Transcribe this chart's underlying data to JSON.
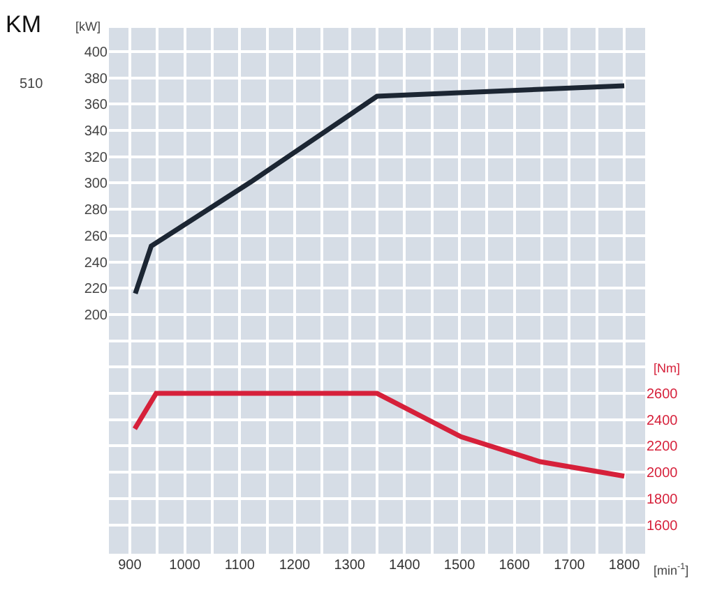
{
  "chart_data": {
    "type": "line",
    "annotations": [
      "KM",
      "510"
    ],
    "xlabel": "[min$^{-1}$]",
    "ylabel": "[kW]",
    "y2label": "[Nm]",
    "series": [
      {
        "color": "#1c2633",
        "x": [
          910,
          939,
          1121,
          1350,
          1800
        ],
        "values": [
          216,
          252,
          301,
          366,
          374
        ]
      },
      {
        "color": "#d6203a",
        "axis": "y2",
        "x": [
          909,
          948,
          1350,
          1503,
          1647,
          1800
        ],
        "values": [
          2330,
          2600,
          2600,
          2270,
          2080,
          1970
        ]
      }
    ],
    "xlim": [
      862,
      1838
    ],
    "xticks": [
      900,
      {
        "value": 950,
        "label": null
      },
      1000,
      {
        "value": 1050,
        "label": null
      },
      1100,
      {
        "value": 1150,
        "label": null
      },
      1200,
      {
        "value": 1250,
        "label": null
      },
      1300,
      {
        "value": 1350,
        "label": null
      },
      1400,
      {
        "value": 1450,
        "label": null
      },
      1500,
      {
        "value": 1550,
        "label": null
      },
      1600,
      {
        "value": 1650,
        "label": null
      },
      1700,
      {
        "value": 1750,
        "label": null
      },
      1800
    ],
    "ylim": [
      18,
      418
    ],
    "yticks": [
      {
        "value": 40,
        "label": null
      },
      {
        "value": 60,
        "label": null
      },
      {
        "value": 80,
        "label": null
      },
      {
        "value": 100,
        "label": null
      },
      {
        "value": 120,
        "label": null
      },
      {
        "value": 140,
        "label": null
      },
      {
        "value": 160,
        "label": null
      },
      {
        "value": 180,
        "label": null
      },
      200,
      220,
      240,
      260,
      280,
      300,
      320,
      340,
      360,
      380,
      400
    ],
    "y2lim": [
      1380,
      5380
    ],
    "y2ticks": [
      1600,
      1800,
      2000,
      2200,
      2400,
      2600
    ],
    "grid": true,
    "marker": "none",
    "line_style": "solid"
  }
}
